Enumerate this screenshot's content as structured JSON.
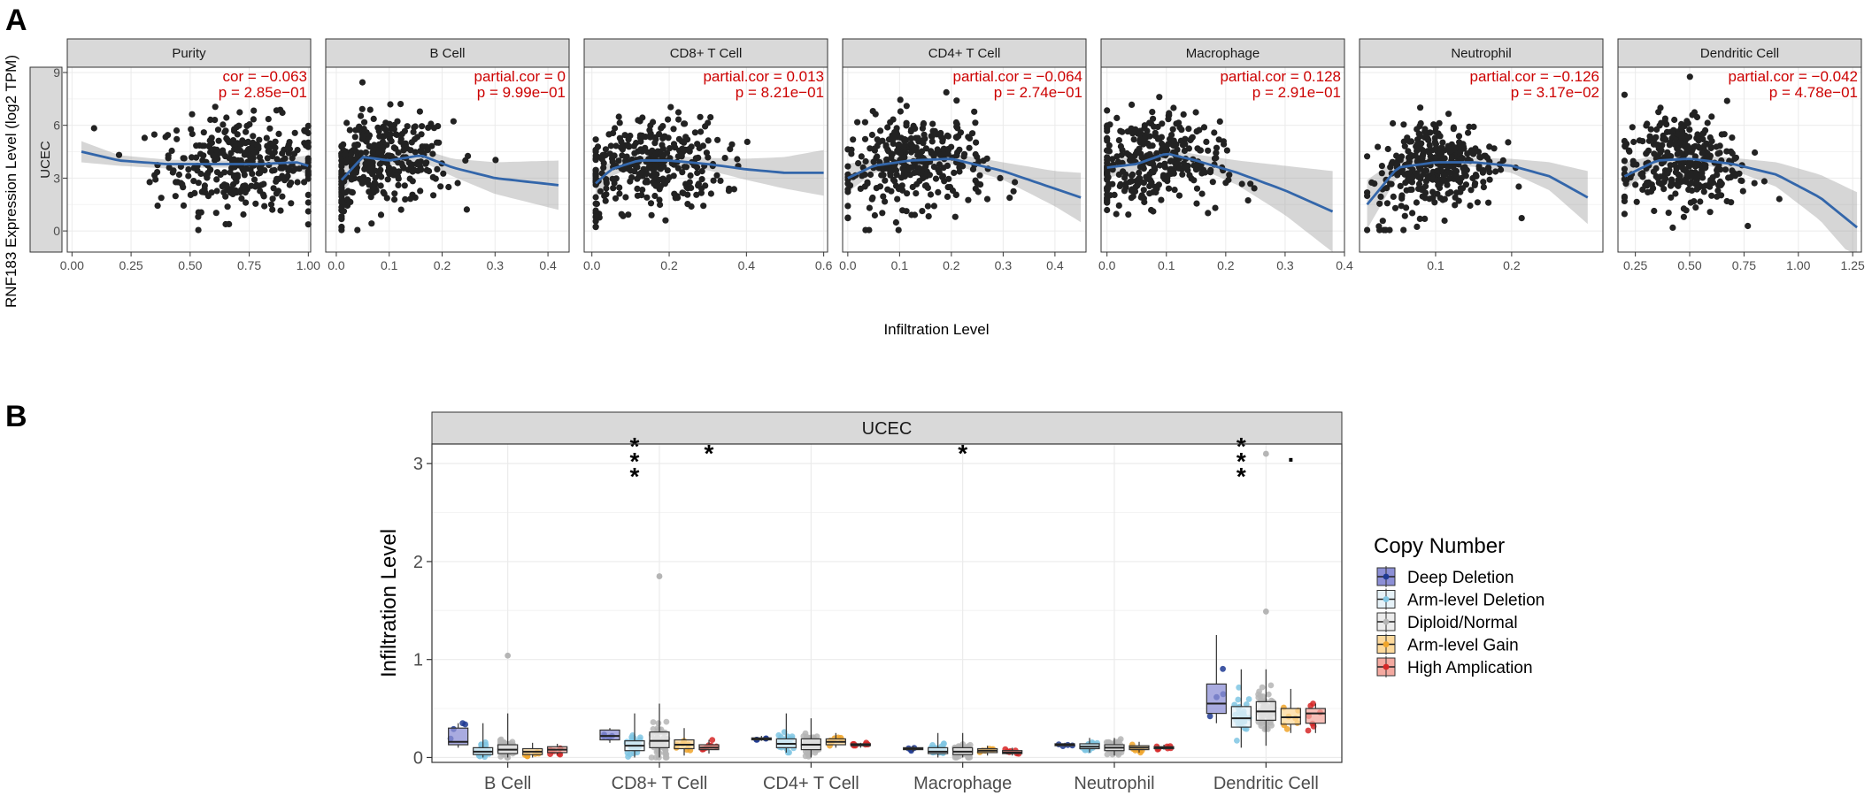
{
  "panel_labels": {
    "a": "A",
    "b": "B"
  },
  "chart_data": [
    {
      "type": "scatter",
      "title": "",
      "cancer": "UCEC",
      "ylabel": "RNF183 Expression Level (log2 TPM)",
      "xlabel": "Infiltration Level",
      "ylim": [
        -1.2,
        9.3
      ],
      "yticks": [
        0,
        3,
        6,
        9
      ],
      "smooth_color": "#3366aa",
      "point_color": "#222222",
      "stat_color": "#cc0000",
      "facets": [
        {
          "name": "Purity",
          "stat_line1": "cor = −0.063",
          "stat_line2": "p = 2.85e−01",
          "xlim": [
            -0.02,
            1.01
          ],
          "xticks": [
            0.0,
            0.25,
            0.5,
            0.75,
            1.0
          ],
          "xtick_labels": [
            "0.00",
            "0.25",
            "0.50",
            "0.75",
            "1.00"
          ],
          "data_range": [
            0.04,
            1.0
          ],
          "center": 0.72,
          "spread": 0.18,
          "smooth": [
            [
              0.04,
              4.5
            ],
            [
              0.2,
              4.0
            ],
            [
              0.4,
              3.8
            ],
            [
              0.6,
              3.8
            ],
            [
              0.8,
              3.8
            ],
            [
              0.95,
              3.9
            ],
            [
              1.0,
              3.7
            ]
          ],
          "ci": [
            0.6,
            0.3,
            0.25,
            0.2,
            0.2,
            0.3,
            0.6
          ]
        },
        {
          "name": "B Cell",
          "stat_line1": "partial.cor = 0",
          "stat_line2": "p = 9.99e−01",
          "xlim": [
            -0.02,
            0.44
          ],
          "xticks": [
            0.0,
            0.1,
            0.2,
            0.3,
            0.4
          ],
          "xtick_labels": [
            "0.0",
            "0.1",
            "0.2",
            "0.3",
            "0.4"
          ],
          "data_range": [
            0.01,
            0.42
          ],
          "center": 0.08,
          "spread": 0.07,
          "smooth": [
            [
              0.01,
              2.9
            ],
            [
              0.05,
              4.2
            ],
            [
              0.1,
              4.0
            ],
            [
              0.16,
              4.3
            ],
            [
              0.22,
              3.6
            ],
            [
              0.3,
              3.0
            ],
            [
              0.42,
              2.6
            ]
          ],
          "ci": [
            0.8,
            0.4,
            0.3,
            0.35,
            0.5,
            0.9,
            1.4
          ]
        },
        {
          "name": "CD8+ T Cell",
          "stat_line1": "partial.cor = 0.013",
          "stat_line2": "p = 8.21e−01",
          "xlim": [
            -0.02,
            0.61
          ],
          "xticks": [
            0.0,
            0.2,
            0.4,
            0.6
          ],
          "xtick_labels": [
            "0.0",
            "0.2",
            "0.4",
            "0.6"
          ],
          "data_range": [
            0.01,
            0.6
          ],
          "center": 0.14,
          "spread": 0.1,
          "smooth": [
            [
              0.01,
              2.7
            ],
            [
              0.05,
              3.5
            ],
            [
              0.12,
              4.0
            ],
            [
              0.2,
              4.0
            ],
            [
              0.3,
              3.8
            ],
            [
              0.4,
              3.5
            ],
            [
              0.5,
              3.3
            ],
            [
              0.6,
              3.3
            ]
          ],
          "ci": [
            0.8,
            0.4,
            0.25,
            0.25,
            0.35,
            0.6,
            0.9,
            1.3
          ]
        },
        {
          "name": "CD4+ T Cell",
          "stat_line1": "partial.cor = −0.064",
          "stat_line2": "p = 2.74e−01",
          "xlim": [
            -0.01,
            0.46
          ],
          "xticks": [
            0.0,
            0.1,
            0.2,
            0.3,
            0.4
          ],
          "xtick_labels": [
            "0.0",
            "0.1",
            "0.2",
            "0.3",
            "0.4"
          ],
          "data_range": [
            0.0,
            0.45
          ],
          "center": 0.13,
          "spread": 0.07,
          "smooth": [
            [
              0.0,
              3.0
            ],
            [
              0.05,
              3.7
            ],
            [
              0.12,
              4.0
            ],
            [
              0.2,
              4.1
            ],
            [
              0.3,
              3.4
            ],
            [
              0.4,
              2.4
            ],
            [
              0.45,
              1.9
            ]
          ],
          "ci": [
            0.8,
            0.4,
            0.25,
            0.3,
            0.5,
            1.0,
            1.4
          ]
        },
        {
          "name": "Macrophage",
          "stat_line1": "partial.cor = 0.128",
          "stat_line2": "p = 2.91e−01",
          "xlim": [
            -0.01,
            0.4
          ],
          "xticks": [
            0.0,
            0.1,
            0.2,
            0.3,
            0.4
          ],
          "xtick_labels": [
            "0.0",
            "0.1",
            "0.2",
            "0.3",
            "0.4"
          ],
          "data_range": [
            0.0,
            0.38
          ],
          "center": 0.07,
          "spread": 0.06,
          "smooth": [
            [
              0.0,
              3.6
            ],
            [
              0.05,
              3.8
            ],
            [
              0.1,
              4.4
            ],
            [
              0.15,
              4.0
            ],
            [
              0.22,
              3.3
            ],
            [
              0.3,
              2.3
            ],
            [
              0.38,
              1.1
            ]
          ],
          "ci": [
            0.6,
            0.35,
            0.3,
            0.35,
            0.7,
            1.4,
            2.3
          ]
        },
        {
          "name": "Neutrophil",
          "stat_line1": "partial.cor = −0.126",
          "stat_line2": "p = 3.17e−02",
          "xlim": [
            0.0,
            0.32
          ],
          "xticks": [
            0.1,
            0.2
          ],
          "xtick_labels": [
            "0.1",
            "0.2"
          ],
          "data_range": [
            0.01,
            0.3
          ],
          "center": 0.1,
          "spread": 0.04,
          "smooth": [
            [
              0.01,
              1.5
            ],
            [
              0.05,
              3.6
            ],
            [
              0.1,
              3.9
            ],
            [
              0.15,
              3.9
            ],
            [
              0.2,
              3.7
            ],
            [
              0.25,
              3.1
            ],
            [
              0.3,
              1.9
            ]
          ],
          "ci": [
            1.4,
            0.5,
            0.25,
            0.25,
            0.4,
            0.8,
            1.5
          ]
        },
        {
          "name": "Dendritic Cell",
          "stat_line1": "partial.cor = −0.042",
          "stat_line2": "p = 4.78e−01",
          "xlim": [
            0.17,
            1.29
          ],
          "xticks": [
            0.25,
            0.5,
            0.75,
            1.0,
            1.25
          ],
          "xtick_labels": [
            "0.25",
            "0.50",
            "0.75",
            "1.00",
            "1.25"
          ],
          "data_range": [
            0.2,
            1.27
          ],
          "center": 0.45,
          "spread": 0.14,
          "smooth": [
            [
              0.2,
              3.1
            ],
            [
              0.35,
              4.0
            ],
            [
              0.5,
              4.1
            ],
            [
              0.7,
              3.8
            ],
            [
              0.9,
              3.2
            ],
            [
              1.1,
              1.9
            ],
            [
              1.27,
              0.2
            ]
          ],
          "ci": [
            0.8,
            0.3,
            0.25,
            0.35,
            0.7,
            1.3,
            2.0
          ]
        }
      ]
    },
    {
      "type": "box",
      "title": "UCEC",
      "xlabel": "",
      "ylabel": "Infiltration Level",
      "ylim": [
        -0.05,
        3.2
      ],
      "yticks": [
        0,
        1,
        2,
        3
      ],
      "categories": [
        "B Cell",
        "CD8+ T Cell",
        "CD4+ T Cell",
        "Macrophage",
        "Neutrophil",
        "Dendritic Cell"
      ],
      "legend": {
        "title": "Copy Number",
        "entries": [
          {
            "name": "Deep Deletion",
            "fill": "#8c8fd6",
            "point": "#1f3a93"
          },
          {
            "name": "Arm-level Deletion",
            "fill": "#e6f2f8",
            "point": "#7fc6e3"
          },
          {
            "name": "Diploid/Normal",
            "fill": "#ececec",
            "point": "#b5b5b5"
          },
          {
            "name": "Arm-level Gain",
            "fill": "#fdd99b",
            "point": "#f0a52a"
          },
          {
            "name": "High Amplication",
            "fill": "#f4a9a0",
            "point": "#d62727"
          }
        ]
      },
      "series": [
        {
          "name": "Deep Deletion",
          "values": [
            [
              0.1,
              0.13,
              0.16,
              0.3,
              0.35
            ],
            [
              0.15,
              0.18,
              0.22,
              0.28,
              0.3
            ],
            [
              0.17,
              0.18,
              0.19,
              0.2,
              0.22
            ],
            [
              0.06,
              0.08,
              0.09,
              0.1,
              0.12
            ],
            [
              0.11,
              0.12,
              0.13,
              0.14,
              0.15
            ],
            [
              0.35,
              0.45,
              0.55,
              0.75,
              1.25
            ]
          ]
        },
        {
          "name": "Arm-level Deletion",
          "values": [
            [
              0.0,
              0.03,
              0.06,
              0.1,
              0.35
            ],
            [
              0.0,
              0.07,
              0.12,
              0.17,
              0.45
            ],
            [
              0.05,
              0.1,
              0.14,
              0.19,
              0.45
            ],
            [
              0.0,
              0.04,
              0.06,
              0.1,
              0.25
            ],
            [
              0.05,
              0.09,
              0.11,
              0.14,
              0.2
            ],
            [
              0.1,
              0.31,
              0.4,
              0.52,
              0.9
            ]
          ]
        },
        {
          "name": "Diploid/Normal",
          "values": [
            [
              0.0,
              0.04,
              0.08,
              0.13,
              0.45
            ],
            [
              0.0,
              0.1,
              0.17,
              0.26,
              0.55
            ],
            [
              0.0,
              0.08,
              0.13,
              0.19,
              0.4
            ],
            [
              0.0,
              0.03,
              0.06,
              0.1,
              0.25
            ],
            [
              0.02,
              0.07,
              0.1,
              0.13,
              0.2
            ],
            [
              0.12,
              0.38,
              0.47,
              0.57,
              0.9
            ]
          ]
        },
        {
          "name": "Arm-level Gain",
          "values": [
            [
              0.0,
              0.03,
              0.06,
              0.09,
              0.15
            ],
            [
              0.02,
              0.09,
              0.13,
              0.18,
              0.3
            ],
            [
              0.1,
              0.13,
              0.16,
              0.19,
              0.25
            ],
            [
              0.02,
              0.05,
              0.07,
              0.09,
              0.12
            ],
            [
              0.05,
              0.08,
              0.1,
              0.12,
              0.16
            ],
            [
              0.25,
              0.34,
              0.41,
              0.5,
              0.7
            ]
          ]
        },
        {
          "name": "High Amplication",
          "values": [
            [
              0.03,
              0.05,
              0.08,
              0.11,
              0.14
            ],
            [
              0.04,
              0.08,
              0.1,
              0.13,
              0.18
            ],
            [
              0.1,
              0.12,
              0.13,
              0.14,
              0.15
            ],
            [
              0.02,
              0.04,
              0.05,
              0.07,
              0.1
            ],
            [
              0.08,
              0.09,
              0.1,
              0.11,
              0.13
            ],
            [
              0.25,
              0.35,
              0.45,
              0.5,
              0.55
            ]
          ]
        }
      ],
      "outliers": [
        {
          "category": "CD8+ T Cell",
          "series": "Diploid/Normal",
          "value": 1.85
        },
        {
          "category": "Dendritic Cell",
          "series": "Diploid/Normal",
          "value": 3.1
        },
        {
          "category": "B Cell",
          "series": "Diploid/Normal",
          "value": 1.04
        },
        {
          "category": "Dendritic Cell",
          "series": "Diploid/Normal",
          "value": 1.49
        }
      ],
      "significance": [
        {
          "category": "CD8+ T Cell",
          "series": "Arm-level Deletion",
          "label": "***"
        },
        {
          "category": "CD8+ T Cell",
          "series": "High Amplication",
          "label": "*"
        },
        {
          "category": "Macrophage",
          "series": "Diploid/Normal",
          "label": "*"
        },
        {
          "category": "Dendritic Cell",
          "series": "Arm-level Deletion",
          "label": "***"
        },
        {
          "category": "Dendritic Cell",
          "series": "Arm-level Gain",
          "label": "."
        }
      ]
    }
  ]
}
